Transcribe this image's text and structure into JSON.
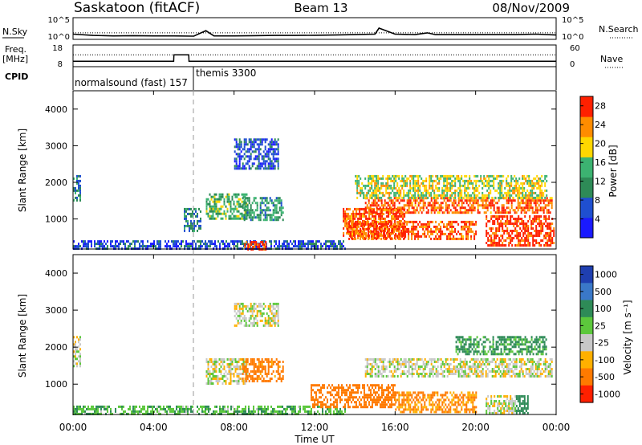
{
  "header": {
    "station": "Saskatoon (fitACF)",
    "beam": "Beam 13",
    "date": "08/Nov/2009"
  },
  "panels": {
    "nsky": {
      "left_label": "N.Sky",
      "right_label": "N.Search",
      "left_ticks": [
        "10^5",
        "10^0"
      ],
      "right_ticks": [
        "10^5",
        "10^0"
      ]
    },
    "freq": {
      "left_label_1": "Freq.",
      "left_label_2": "[MHz]",
      "right_label": "Nave",
      "left_ticks": [
        "18",
        "8"
      ],
      "right_ticks": [
        "60",
        "0"
      ]
    },
    "cpid": {
      "label": "CPID",
      "modes": [
        "normalsound (fast) 157",
        "themis 3300"
      ]
    },
    "power": {
      "ylabel": "Slant Range [km]",
      "colorbar_label": "Power [dB]"
    },
    "velocity": {
      "ylabel": "Slant Range [km]",
      "colorbar_label": "Velocity [m s⁻¹]"
    },
    "xlabel": "Time UT"
  },
  "chart_data": [
    {
      "type": "line",
      "title": "N.Sky / N.Search",
      "x": [
        0,
        1,
        2,
        3,
        4,
        5,
        6,
        6.6,
        7,
        8,
        9,
        10,
        11,
        12,
        13,
        14,
        15,
        15.2,
        16,
        17,
        17.6,
        18,
        19,
        20,
        21,
        22,
        23,
        24
      ],
      "series": [
        {
          "name": "N.Sky",
          "values": [
            1.2,
            0.9,
            0.8,
            0.85,
            0.8,
            0.8,
            0.75,
            2.0,
            0.8,
            0.8,
            0.85,
            0.9,
            0.9,
            0.95,
            1.0,
            1.1,
            1.2,
            2.6,
            1.2,
            1.1,
            1.5,
            1.1,
            1.1,
            1.1,
            1.1,
            1.1,
            1.2,
            1.0
          ]
        },
        {
          "name": "N.Search",
          "values": [
            1.5,
            1.5,
            1.5,
            1.5,
            1.5,
            1.5,
            1.5,
            1.5,
            1.5,
            1.5,
            1.5,
            1.5,
            1.5,
            1.5,
            1.5,
            1.5,
            1.5,
            1.5,
            1.5,
            1.5,
            1.5,
            1.5,
            1.5,
            1.5,
            1.5,
            1.5,
            1.5,
            1.5
          ]
        }
      ],
      "ylim": [
        0,
        5
      ],
      "xlim": [
        0,
        24
      ]
    },
    {
      "type": "line",
      "title": "Freq. / Nave",
      "x": [
        0,
        5,
        5.01,
        5.75,
        5.76,
        24
      ],
      "series": [
        {
          "name": "Freq.",
          "values": [
            10.5,
            10.5,
            13.5,
            13.5,
            10.5,
            10.5
          ]
        },
        {
          "name": "Nave",
          "values": [
            33,
            33,
            33,
            33,
            33,
            33
          ]
        }
      ],
      "ylim": [
        8,
        18
      ],
      "xlim": [
        0,
        24
      ]
    },
    {
      "type": "heatmap",
      "title": "Power [dB]",
      "xlabel": "Time UT",
      "ylabel": "Slant Range [km]",
      "xlim": [
        0,
        24
      ],
      "ylim": [
        180,
        4500
      ],
      "x_ticks": [
        "00:00",
        "04:00",
        "08:00",
        "12:00",
        "16:00",
        "20:00",
        "00:00"
      ],
      "y_ticks": [
        1000,
        2000,
        3000,
        4000
      ],
      "colorbar": {
        "label": "Power [dB]",
        "ticks": [
          4,
          8,
          12,
          16,
          20,
          24,
          28
        ],
        "range": [
          0,
          30
        ],
        "colors": [
          "#1a1aff",
          "#1f4fd0",
          "#2e8b57",
          "#3cb371",
          "#ffd700",
          "#ff8c00",
          "#ff2000"
        ]
      },
      "regions": [
        {
          "t0": 0.0,
          "t1": 0.35,
          "r0": 1500,
          "r1": 2200,
          "value": 10
        },
        {
          "t0": 0.0,
          "t1": 13.5,
          "r0": 180,
          "r1": 420,
          "value": 6
        },
        {
          "t0": 5.5,
          "t1": 6.3,
          "r0": 700,
          "r1": 1300,
          "value": 10
        },
        {
          "t0": 6.6,
          "t1": 8.6,
          "r0": 1000,
          "r1": 1700,
          "value": 14
        },
        {
          "t0": 8.4,
          "t1": 10.4,
          "r0": 1000,
          "r1": 1600,
          "value": 12
        },
        {
          "t0": 8.0,
          "t1": 10.2,
          "r0": 2400,
          "r1": 3200,
          "value": 6
        },
        {
          "t0": 13.4,
          "t1": 16.5,
          "r0": 500,
          "r1": 1300,
          "value": 26
        },
        {
          "t0": 14.5,
          "t1": 23.8,
          "r0": 1200,
          "r1": 1600,
          "value": 26
        },
        {
          "t0": 13.6,
          "t1": 20.0,
          "r0": 450,
          "r1": 950,
          "value": 26
        },
        {
          "t0": 20.5,
          "t1": 23.9,
          "r0": 250,
          "r1": 1100,
          "value": 28
        },
        {
          "t0": 14.0,
          "t1": 23.5,
          "r0": 1600,
          "r1": 2200,
          "value": 18
        },
        {
          "t0": 8.5,
          "t1": 9.6,
          "r0": 180,
          "r1": 400,
          "value": 28
        }
      ]
    },
    {
      "type": "heatmap",
      "title": "Velocity [m s-1]",
      "xlabel": "Time UT",
      "ylabel": "Slant Range [km]",
      "xlim": [
        0,
        24
      ],
      "ylim": [
        180,
        4500
      ],
      "x_ticks": [
        "00:00",
        "04:00",
        "08:00",
        "12:00",
        "16:00",
        "20:00",
        "00:00"
      ],
      "y_ticks": [
        1000,
        2000,
        3000,
        4000
      ],
      "colorbar": {
        "label": "Velocity [m s-1]",
        "ticks": [
          1000,
          500,
          100,
          25,
          -25,
          -100,
          -500,
          -1000
        ],
        "colors": [
          "#1f3fb0",
          "#3a78c8",
          "#2e8b57",
          "#5cc83c",
          "#c8c8c8",
          "#ffb000",
          "#ff7a00",
          "#ff2000"
        ]
      },
      "regions": [
        {
          "t0": 0.0,
          "t1": 0.35,
          "r0": 1500,
          "r1": 2300,
          "value": 0
        },
        {
          "t0": 0.0,
          "t1": 13.5,
          "r0": 180,
          "r1": 420,
          "value": 80
        },
        {
          "t0": 6.6,
          "t1": 8.6,
          "r0": 1000,
          "r1": 1700,
          "value": 0
        },
        {
          "t0": 8.4,
          "t1": 10.4,
          "r0": 1100,
          "r1": 1700,
          "value": -150
        },
        {
          "t0": 8.0,
          "t1": 10.2,
          "r0": 2600,
          "r1": 3200,
          "value": 0
        },
        {
          "t0": 11.8,
          "t1": 16.0,
          "r0": 350,
          "r1": 1000,
          "value": -300
        },
        {
          "t0": 16.0,
          "t1": 20.0,
          "r0": 250,
          "r1": 800,
          "value": -120
        },
        {
          "t0": 14.5,
          "t1": 23.8,
          "r0": 1200,
          "r1": 1700,
          "value": 0
        },
        {
          "t0": 20.5,
          "t1": 22.0,
          "r0": 200,
          "r1": 700,
          "value": 0
        },
        {
          "t0": 22.0,
          "t1": 22.6,
          "r0": 200,
          "r1": 700,
          "value": 200
        },
        {
          "t0": 19.0,
          "t1": 23.5,
          "r0": 1800,
          "r1": 2300,
          "value": 120
        }
      ]
    }
  ]
}
